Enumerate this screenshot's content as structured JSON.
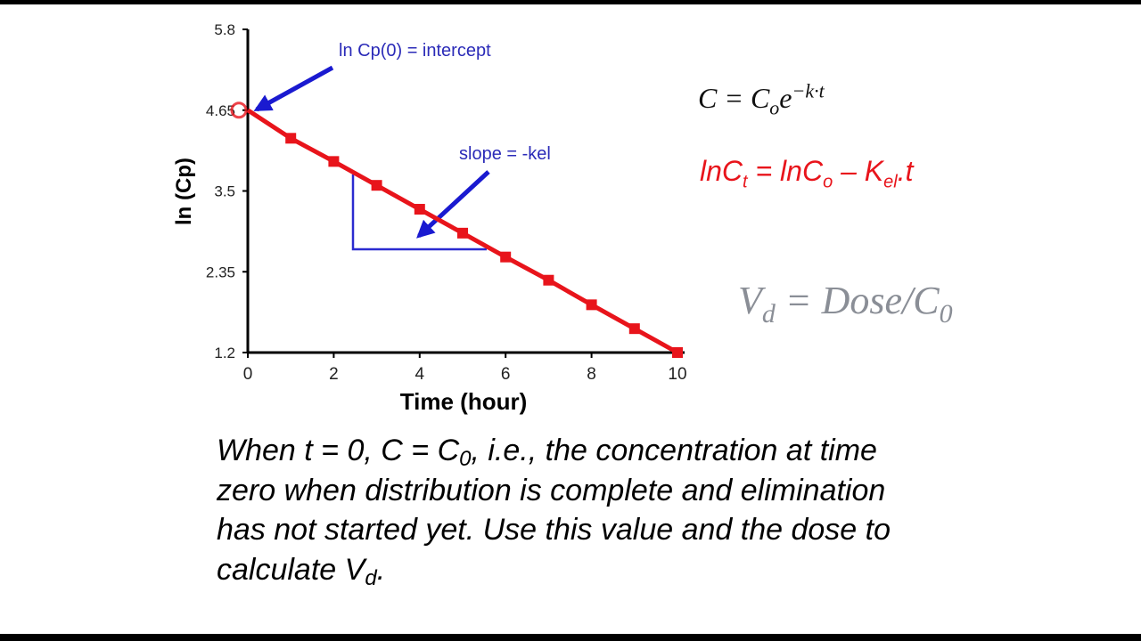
{
  "chart_data": {
    "type": "line",
    "x": [
      0,
      1,
      2,
      3,
      4,
      5,
      6,
      7,
      8,
      9,
      10
    ],
    "values": [
      4.65,
      4.25,
      3.92,
      3.58,
      3.24,
      2.9,
      2.56,
      2.23,
      1.88,
      1.54,
      1.2
    ],
    "color": "#e8141b",
    "xlim": [
      0,
      10
    ],
    "xticks": [
      0,
      2,
      4,
      6,
      8,
      10
    ],
    "ylim": [
      1.2,
      5.8
    ],
    "yticks": [
      1.2,
      2.35,
      3.5,
      4.65,
      5.8
    ],
    "x_label": "Time (hour)",
    "y_label": "ln (Cp)",
    "annotations": [
      "ln Cp(0) = intercept",
      "slope = -kel"
    ]
  },
  "equations": {
    "eq1": [
      "C = C",
      "o",
      "e",
      "−k·t"
    ],
    "eq2": [
      "lnC",
      "t",
      " = lnC",
      "o",
      " – K",
      "el",
      ".t"
    ],
    "eq3": [
      "V",
      "d",
      " = Dose/C",
      "0"
    ]
  },
  "paragraph": [
    [
      "When t = 0, C = C",
      "0",
      ", i.e., the concentration at time"
    ],
    [
      "zero when distribution is complete and elimination"
    ],
    [
      "has not started yet. Use this value and the dose to"
    ],
    [
      "calculate V",
      "d",
      "."
    ]
  ]
}
